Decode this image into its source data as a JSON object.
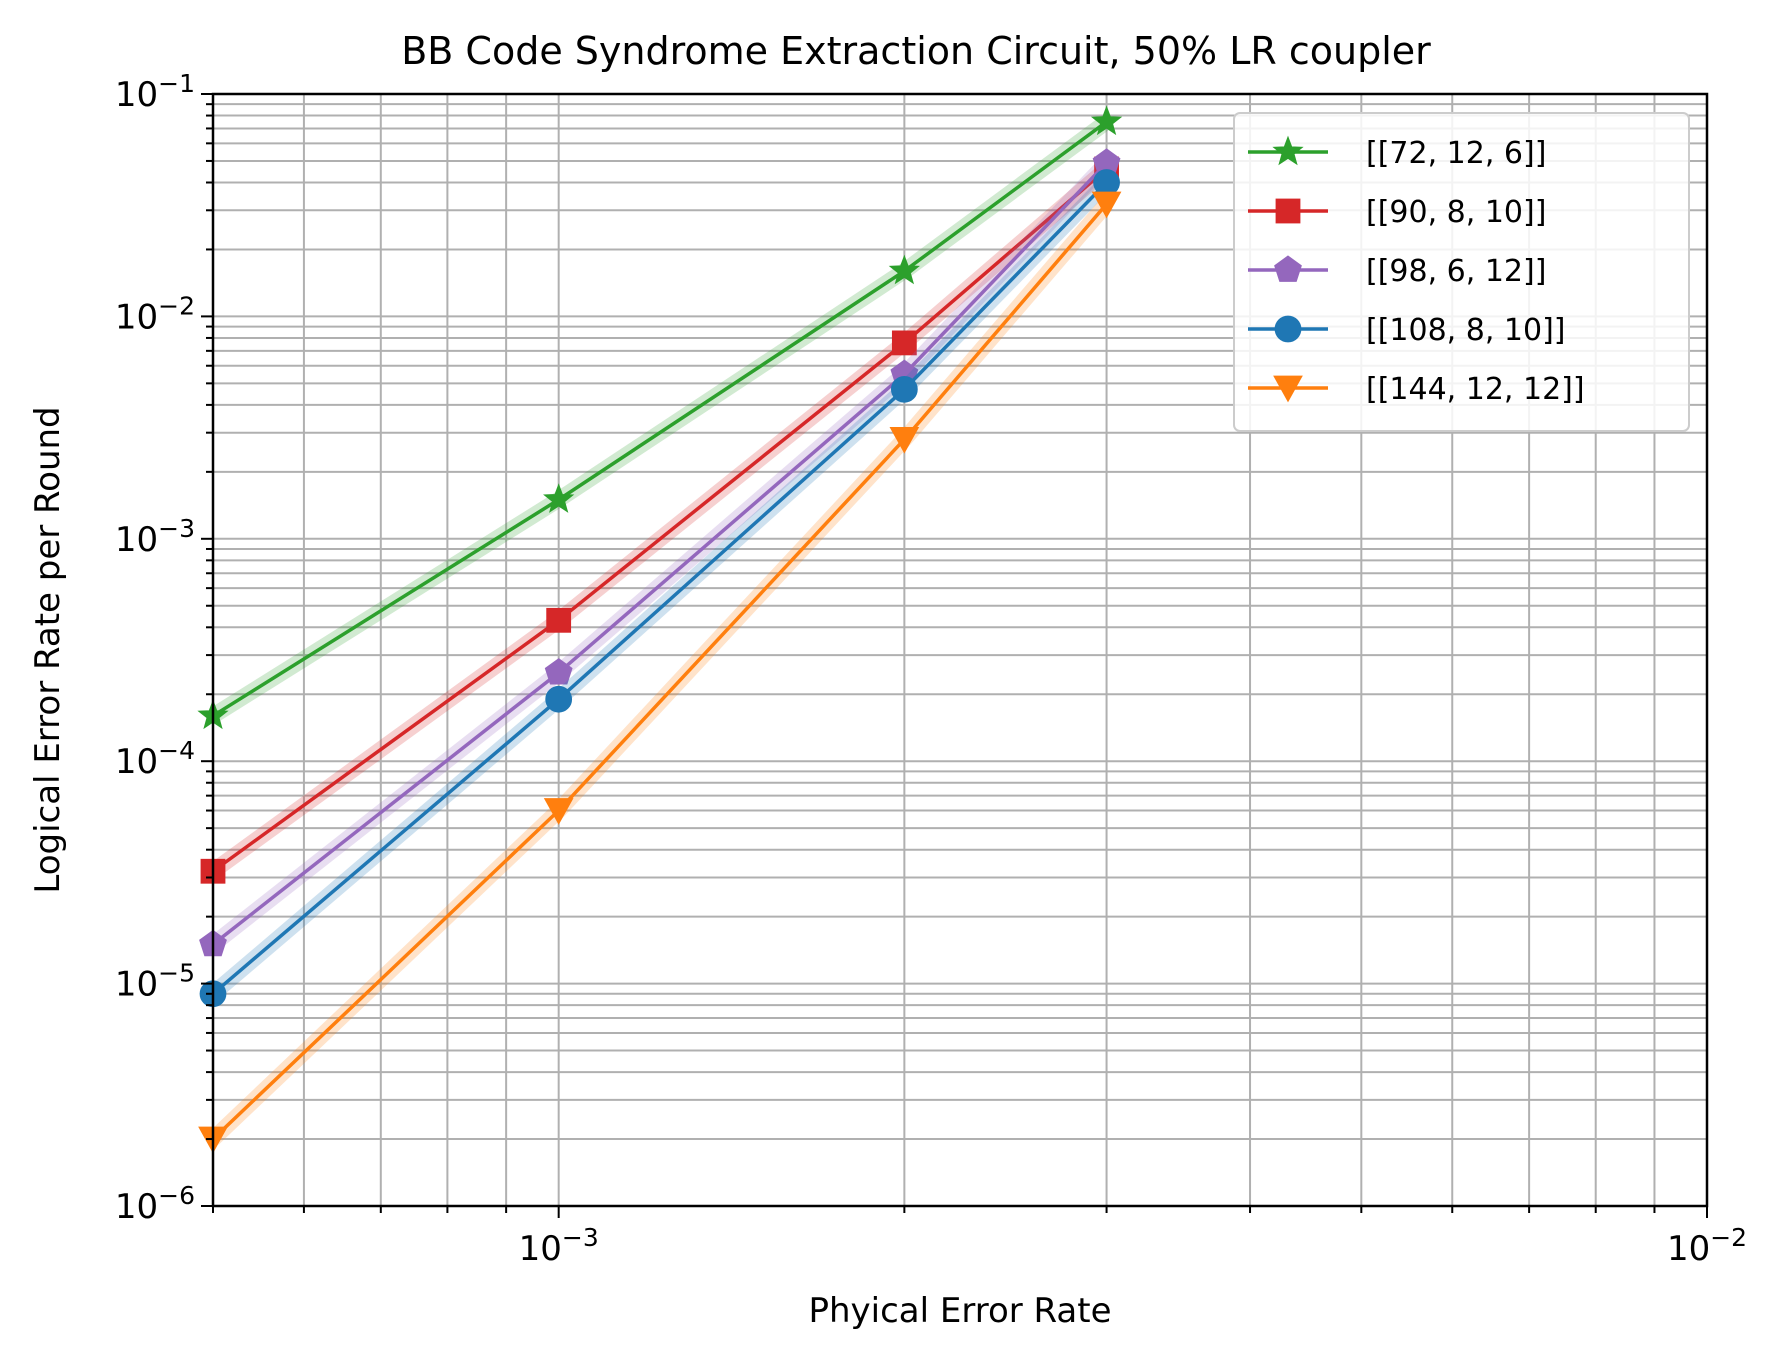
{
  "chart_data": {
    "type": "line",
    "title": "BB Code Syndrome Extraction Circuit, 50% LR coupler",
    "xlabel": "Phyical Error Rate",
    "ylabel": "Logical Error Rate per Round",
    "xscale": "log",
    "yscale": "log",
    "xlim": [
      0.0005,
      0.01
    ],
    "ylim": [
      1e-06,
      0.1
    ],
    "grid": "major and minor",
    "legend_position": "top-right",
    "x_tick_labels": [
      {
        "value": 0.001,
        "base": "10",
        "exp": "−3"
      },
      {
        "value": 0.01,
        "base": "10",
        "exp": "−2"
      }
    ],
    "y_tick_labels": [
      {
        "value": 1e-06,
        "base": "10",
        "exp": "−6"
      },
      {
        "value": 1e-05,
        "base": "10",
        "exp": "−5"
      },
      {
        "value": 0.0001,
        "base": "10",
        "exp": "−4"
      },
      {
        "value": 0.001,
        "base": "10",
        "exp": "−3"
      },
      {
        "value": 0.01,
        "base": "10",
        "exp": "−2"
      },
      {
        "value": 0.1,
        "base": "10",
        "exp": "−1"
      }
    ],
    "x": [
      0.0005,
      0.001,
      0.002,
      0.003
    ],
    "series": [
      {
        "name": "[[72, 12, 6]]",
        "color": "#2ca02c",
        "marker": "star",
        "values": [
          0.00016,
          0.0015,
          0.016,
          0.075
        ]
      },
      {
        "name": "[[90, 8, 10]]",
        "color": "#d62728",
        "marker": "square",
        "values": [
          3.2e-05,
          0.00043,
          0.0076,
          0.046
        ]
      },
      {
        "name": "[[98, 6, 12]]",
        "color": "#9467bd",
        "marker": "pentagon",
        "values": [
          1.5e-05,
          0.00025,
          0.0055,
          0.049
        ]
      },
      {
        "name": "[[108, 8, 10]]",
        "color": "#1f77b4",
        "marker": "circle",
        "values": [
          9e-06,
          0.00019,
          0.0047,
          0.04
        ]
      },
      {
        "name": "[[144, 12, 12]]",
        "color": "#ff7f0e",
        "marker": "triangle-down",
        "values": [
          2e-06,
          6e-05,
          0.0028,
          0.032
        ]
      }
    ]
  }
}
